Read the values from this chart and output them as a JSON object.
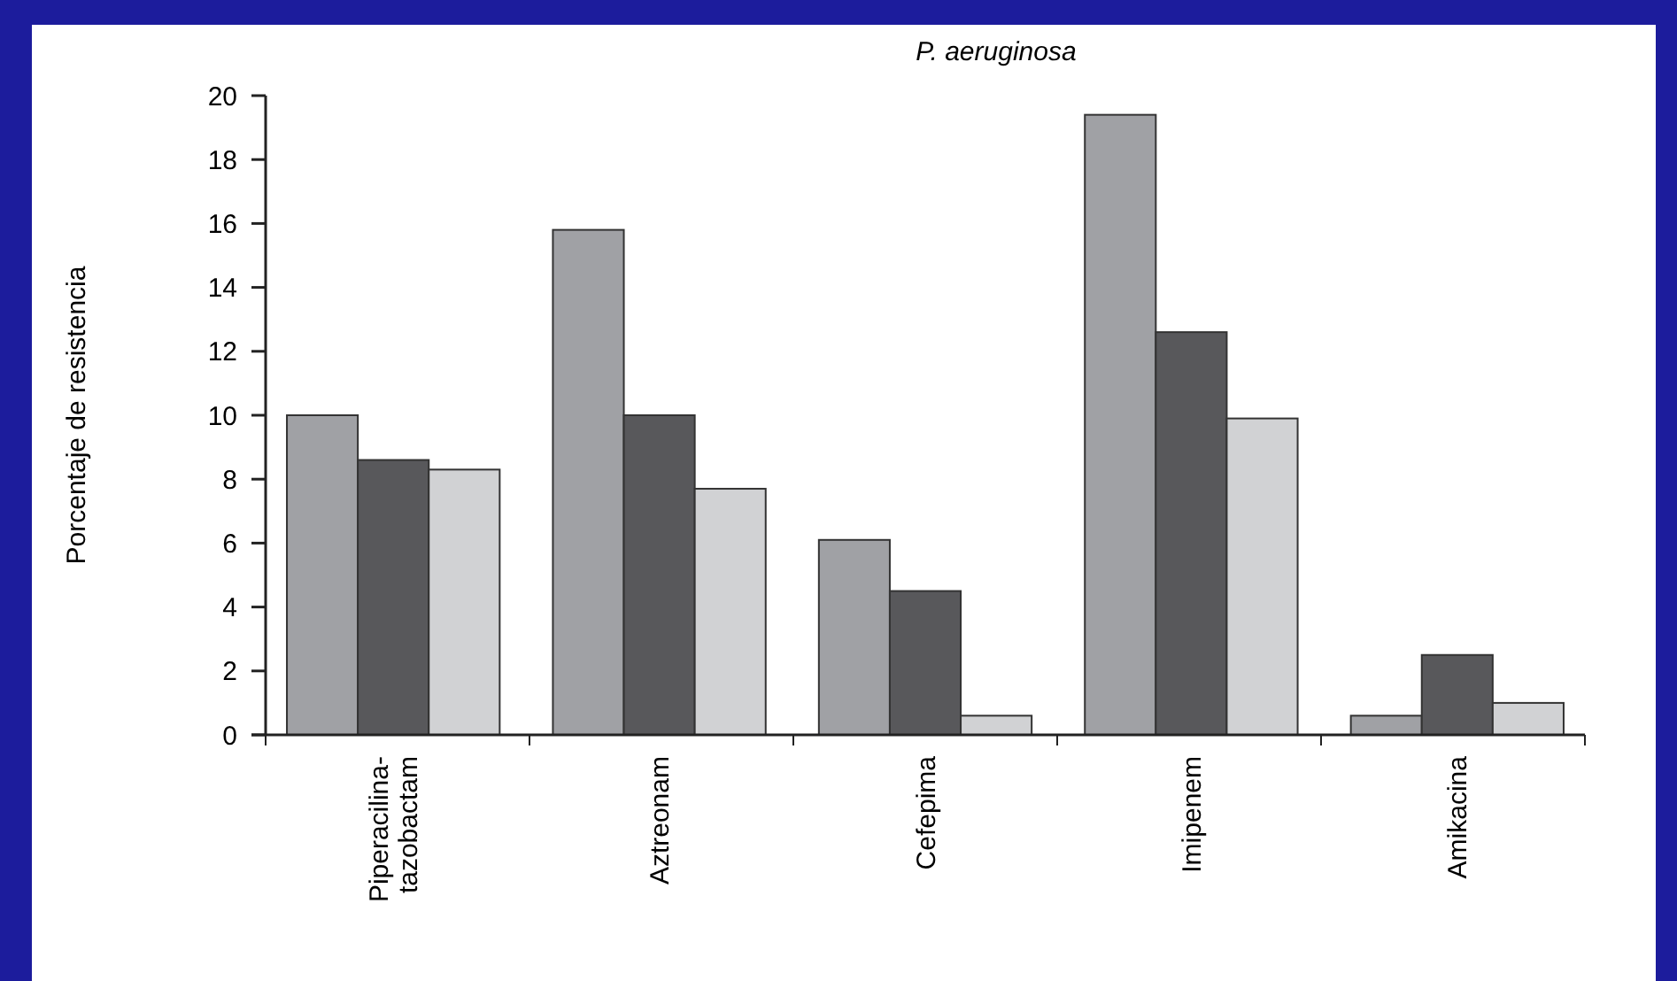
{
  "chart_data": {
    "type": "bar",
    "title": "P. aeruginosa",
    "ylabel": "Porcentaje de resistencia",
    "categories": [
      "Piperacilina-\ntazobactam",
      "Aztreonam",
      "Cefepima",
      "Imipenem",
      "Amikacina"
    ],
    "series": [
      {
        "color": "#a0a1a5",
        "values": [
          10,
          15.8,
          6.1,
          19.4,
          0.6
        ]
      },
      {
        "color": "#58585b",
        "values": [
          8.6,
          10,
          4.5,
          12.6,
          2.5
        ]
      },
      {
        "color": "#d1d2d4",
        "values": [
          8.3,
          7.7,
          0.6,
          9.9,
          1.0
        ]
      }
    ],
    "ylim": [
      0,
      20
    ],
    "yticks": [
      0,
      2,
      4,
      6,
      8,
      10,
      12,
      14,
      16,
      18,
      20
    ],
    "grid": false
  }
}
